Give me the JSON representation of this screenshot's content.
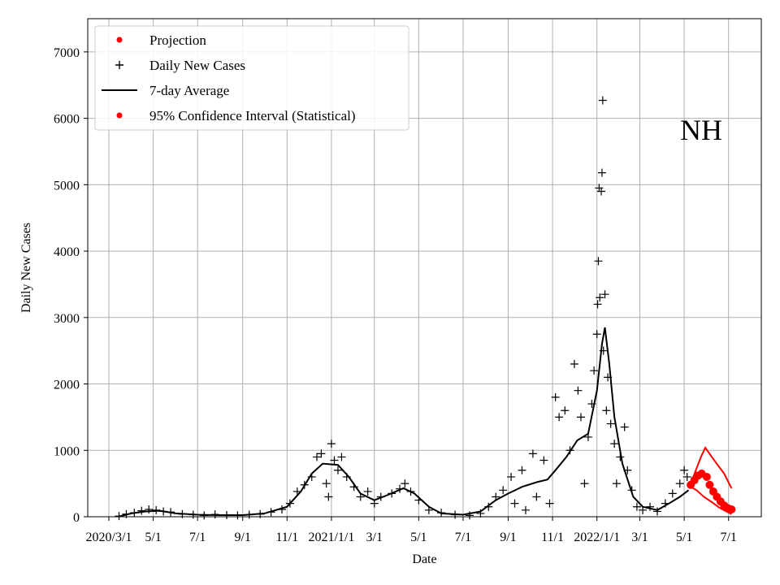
{
  "chart_data": {
    "type": "scatter",
    "state_label": "NH",
    "xlabel": "Date",
    "ylabel": "Daily New Cases",
    "x_ticks": [
      "2020/3/1",
      "5/1",
      "7/1",
      "9/1",
      "11/1",
      "2021/1/1",
      "3/1",
      "5/1",
      "7/1",
      "9/1",
      "11/1",
      "2022/1/1",
      "3/1",
      "5/1",
      "7/1"
    ],
    "x_tick_dates": [
      "2020-03-01",
      "2020-05-01",
      "2020-07-01",
      "2020-09-01",
      "2020-11-01",
      "2021-01-01",
      "2021-03-01",
      "2021-05-01",
      "2021-07-01",
      "2021-09-01",
      "2021-11-01",
      "2022-01-01",
      "2022-03-01",
      "2022-05-01",
      "2022-07-01"
    ],
    "xlim": [
      "2020-02-01",
      "2022-08-15"
    ],
    "y_ticks": [
      0,
      1000,
      2000,
      3000,
      4000,
      5000,
      6000,
      7000
    ],
    "ylim": [
      0,
      7500
    ],
    "grid": true,
    "legend_position": "upper-left",
    "legend": [
      {
        "label": "Projection",
        "marker": "dot",
        "color": "#ff0000"
      },
      {
        "label": "Daily New Cases",
        "marker": "plus",
        "color": "#000000"
      },
      {
        "label": "7-day Average",
        "marker": "line",
        "color": "#000000"
      },
      {
        "label": "95% Confidence Interval (Statistical)",
        "marker": "dot",
        "color": "#ff0000"
      }
    ],
    "series": [
      {
        "name": "7-day Average",
        "style": "line",
        "color": "#000000",
        "points": [
          [
            "2020-03-15",
            5
          ],
          [
            "2020-04-01",
            50
          ],
          [
            "2020-04-20",
            80
          ],
          [
            "2020-05-10",
            90
          ],
          [
            "2020-06-01",
            50
          ],
          [
            "2020-07-01",
            30
          ],
          [
            "2020-08-01",
            25
          ],
          [
            "2020-09-01",
            25
          ],
          [
            "2020-10-01",
            50
          ],
          [
            "2020-11-01",
            150
          ],
          [
            "2020-11-20",
            380
          ],
          [
            "2020-12-05",
            650
          ],
          [
            "2020-12-20",
            800
          ],
          [
            "2021-01-10",
            780
          ],
          [
            "2021-01-25",
            600
          ],
          [
            "2021-02-10",
            350
          ],
          [
            "2021-03-01",
            250
          ],
          [
            "2021-03-20",
            330
          ],
          [
            "2021-04-10",
            430
          ],
          [
            "2021-04-25",
            350
          ],
          [
            "2021-05-15",
            150
          ],
          [
            "2021-06-01",
            50
          ],
          [
            "2021-07-01",
            30
          ],
          [
            "2021-07-25",
            80
          ],
          [
            "2021-08-15",
            250
          ],
          [
            "2021-09-01",
            350
          ],
          [
            "2021-09-20",
            450
          ],
          [
            "2021-10-10",
            520
          ],
          [
            "2021-10-25",
            560
          ],
          [
            "2021-11-05",
            700
          ],
          [
            "2021-11-20",
            900
          ],
          [
            "2021-12-05",
            1150
          ],
          [
            "2021-12-20",
            1250
          ],
          [
            "2022-01-01",
            1900
          ],
          [
            "2022-01-08",
            2600
          ],
          [
            "2022-01-12",
            2850
          ],
          [
            "2022-01-18",
            2300
          ],
          [
            "2022-01-25",
            1500
          ],
          [
            "2022-02-05",
            800
          ],
          [
            "2022-02-20",
            300
          ],
          [
            "2022-03-05",
            150
          ],
          [
            "2022-03-25",
            100
          ],
          [
            "2022-04-10",
            200
          ],
          [
            "2022-04-25",
            300
          ],
          [
            "2022-05-07",
            400
          ]
        ]
      },
      {
        "name": "Daily New Cases",
        "style": "plus",
        "color": "#000000",
        "points": [
          [
            "2020-03-15",
            10
          ],
          [
            "2020-03-25",
            40
          ],
          [
            "2020-04-05",
            60
          ],
          [
            "2020-04-15",
            90
          ],
          [
            "2020-04-25",
            110
          ],
          [
            "2020-05-05",
            100
          ],
          [
            "2020-05-15",
            80
          ],
          [
            "2020-05-25",
            70
          ],
          [
            "2020-06-10",
            40
          ],
          [
            "2020-06-25",
            30
          ],
          [
            "2020-07-10",
            20
          ],
          [
            "2020-07-25",
            35
          ],
          [
            "2020-08-10",
            25
          ],
          [
            "2020-08-25",
            20
          ],
          [
            "2020-09-10",
            30
          ],
          [
            "2020-09-25",
            40
          ],
          [
            "2020-10-10",
            70
          ],
          [
            "2020-10-25",
            110
          ],
          [
            "2020-11-05",
            200
          ],
          [
            "2020-11-15",
            380
          ],
          [
            "2020-11-25",
            480
          ],
          [
            "2020-12-05",
            600
          ],
          [
            "2020-12-12",
            900
          ],
          [
            "2020-12-18",
            950
          ],
          [
            "2020-12-25",
            500
          ],
          [
            "2020-12-28",
            300
          ],
          [
            "2021-01-01",
            1100
          ],
          [
            "2021-01-05",
            850
          ],
          [
            "2021-01-10",
            700
          ],
          [
            "2021-01-15",
            900
          ],
          [
            "2021-01-22",
            600
          ],
          [
            "2021-02-01",
            450
          ],
          [
            "2021-02-10",
            300
          ],
          [
            "2021-02-20",
            380
          ],
          [
            "2021-03-01",
            200
          ],
          [
            "2021-03-10",
            300
          ],
          [
            "2021-03-25",
            350
          ],
          [
            "2021-04-05",
            420
          ],
          [
            "2021-04-12",
            500
          ],
          [
            "2021-04-20",
            380
          ],
          [
            "2021-05-01",
            250
          ],
          [
            "2021-05-15",
            100
          ],
          [
            "2021-06-01",
            60
          ],
          [
            "2021-06-20",
            30
          ],
          [
            "2021-07-10",
            20
          ],
          [
            "2021-07-25",
            50
          ],
          [
            "2021-08-05",
            150
          ],
          [
            "2021-08-15",
            300
          ],
          [
            "2021-08-25",
            400
          ],
          [
            "2021-09-05",
            600
          ],
          [
            "2021-09-10",
            200
          ],
          [
            "2021-09-20",
            700
          ],
          [
            "2021-09-25",
            100
          ],
          [
            "2021-10-05",
            950
          ],
          [
            "2021-10-10",
            300
          ],
          [
            "2021-10-20",
            850
          ],
          [
            "2021-10-28",
            200
          ],
          [
            "2021-11-05",
            1800
          ],
          [
            "2021-11-10",
            1500
          ],
          [
            "2021-11-18",
            1600
          ],
          [
            "2021-11-25",
            1000
          ],
          [
            "2021-12-01",
            2300
          ],
          [
            "2021-12-06",
            1900
          ],
          [
            "2021-12-10",
            1500
          ],
          [
            "2021-12-15",
            500
          ],
          [
            "2021-12-20",
            1200
          ],
          [
            "2021-12-25",
            1700
          ],
          [
            "2021-12-28",
            2200
          ],
          [
            "2022-01-01",
            2750
          ],
          [
            "2022-01-02",
            3200
          ],
          [
            "2022-01-03",
            3850
          ],
          [
            "2022-01-04",
            4950
          ],
          [
            "2022-01-05",
            3300
          ],
          [
            "2022-01-07",
            4900
          ],
          [
            "2022-01-08",
            5180
          ],
          [
            "2022-01-09",
            6270
          ],
          [
            "2022-01-10",
            2500
          ],
          [
            "2022-01-12",
            3350
          ],
          [
            "2022-01-14",
            1600
          ],
          [
            "2022-01-16",
            2100
          ],
          [
            "2022-01-20",
            1400
          ],
          [
            "2022-01-25",
            1100
          ],
          [
            "2022-01-28",
            500
          ],
          [
            "2022-02-02",
            900
          ],
          [
            "2022-02-08",
            1350
          ],
          [
            "2022-02-12",
            700
          ],
          [
            "2022-02-18",
            400
          ],
          [
            "2022-02-25",
            150
          ],
          [
            "2022-03-05",
            100
          ],
          [
            "2022-03-15",
            150
          ],
          [
            "2022-03-25",
            80
          ],
          [
            "2022-04-05",
            200
          ],
          [
            "2022-04-15",
            350
          ],
          [
            "2022-04-25",
            500
          ],
          [
            "2022-05-01",
            700
          ],
          [
            "2022-05-05",
            600
          ]
        ]
      },
      {
        "name": "Projection",
        "style": "dot",
        "color": "#ff0000",
        "points": [
          [
            "2022-05-10",
            480
          ],
          [
            "2022-05-15",
            550
          ],
          [
            "2022-05-20",
            620
          ],
          [
            "2022-05-25",
            650
          ],
          [
            "2022-06-01",
            600
          ],
          [
            "2022-06-05",
            480
          ],
          [
            "2022-06-10",
            380
          ],
          [
            "2022-06-15",
            300
          ],
          [
            "2022-06-20",
            230
          ],
          [
            "2022-06-25",
            170
          ],
          [
            "2022-06-30",
            130
          ],
          [
            "2022-07-05",
            110
          ]
        ]
      },
      {
        "name": "95% Confidence Interval (Statistical)",
        "style": "band",
        "color": "#ff0000",
        "upper": [
          [
            "2022-05-10",
            500
          ],
          [
            "2022-05-17",
            700
          ],
          [
            "2022-05-24",
            900
          ],
          [
            "2022-05-30",
            1040
          ],
          [
            "2022-06-08",
            900
          ],
          [
            "2022-06-18",
            750
          ],
          [
            "2022-06-25",
            650
          ],
          [
            "2022-07-05",
            430
          ]
        ],
        "lower": [
          [
            "2022-05-10",
            450
          ],
          [
            "2022-05-18",
            400
          ],
          [
            "2022-05-28",
            300
          ],
          [
            "2022-06-08",
            220
          ],
          [
            "2022-06-18",
            140
          ],
          [
            "2022-06-28",
            80
          ],
          [
            "2022-07-05",
            40
          ]
        ]
      }
    ]
  }
}
